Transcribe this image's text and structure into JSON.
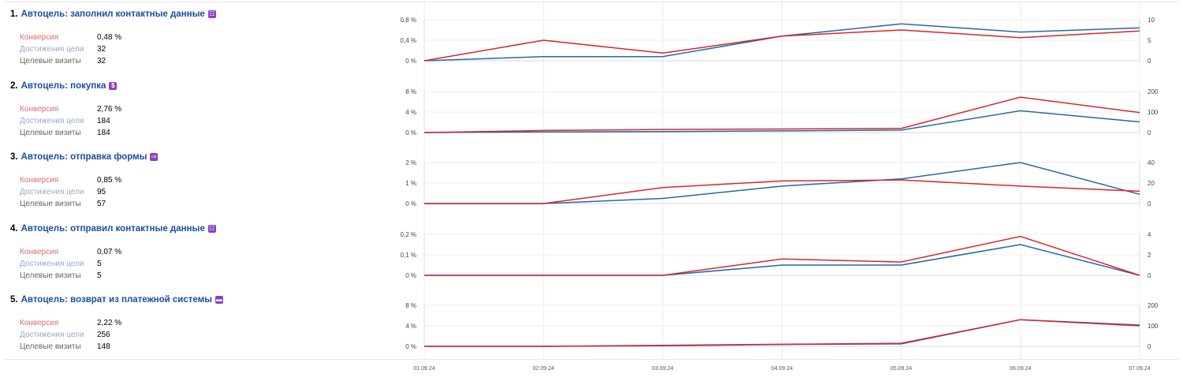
{
  "dates": [
    "01.09.24",
    "02.09.24",
    "03.09.24",
    "04.09.24",
    "05.09.24",
    "06.09.24",
    "07.09.24"
  ],
  "weekend_dates": [
    0,
    6
  ],
  "colors": {
    "conversion": "#d8262b",
    "visits": "#2469a5",
    "title": "#1a4ea3",
    "weekend": "#d8262b",
    "icon": "#8a3fc3"
  },
  "metric_labels": {
    "conversion": "Конверсия",
    "achievements": "Достижения цели",
    "visits": "Целевые визиты"
  },
  "goals": [
    {
      "num": "1.",
      "title": "Автоцель: заполнил контактные данные",
      "icon": "form-icon",
      "conversion": "0,48 %",
      "achievements": "32",
      "visits": "32",
      "chart_data": {
        "type": "line",
        "left_ticks": [
          "0 %",
          "0,4 %",
          "0,8 %"
        ],
        "right_ticks": [
          "0",
          "5",
          "10"
        ],
        "left_max": 0.8,
        "right_max": 10,
        "series": [
          {
            "values": [
              0,
              0.4,
              0.15,
              0.48,
              0.6,
              0.45,
              0.58
            ]
          },
          {
            "values": [
              0,
              1,
              1,
              6,
              9,
              7,
              8
            ]
          }
        ]
      }
    },
    {
      "num": "2.",
      "title": "Автоцель: покупка",
      "icon": "dollar-icon",
      "conversion": "2,76 %",
      "achievements": "184",
      "visits": "184",
      "chart_data": {
        "type": "line",
        "left_ticks": [
          "0 %",
          "4 %",
          "8 %"
        ],
        "right_ticks": [
          "0",
          "100",
          "200"
        ],
        "left_max": 8,
        "right_max": 200,
        "series": [
          {
            "values": [
              0,
              0.4,
              0.6,
              0.7,
              0.8,
              6.9,
              3.9
            ]
          },
          {
            "values": [
              0,
              3,
              5,
              8,
              12,
              106,
              52
            ]
          }
        ]
      }
    },
    {
      "num": "3.",
      "title": "Автоцель: отправка формы",
      "icon": "form-send-icon",
      "conversion": "0,85 %",
      "achievements": "95",
      "visits": "57",
      "chart_data": {
        "type": "line",
        "left_ticks": [
          "0 %",
          "1 %",
          "2 %"
        ],
        "right_ticks": [
          "0",
          "20",
          "40"
        ],
        "left_max": 2,
        "right_max": 40,
        "series": [
          {
            "values": [
              0,
              0,
              0.78,
              1.1,
              1.15,
              0.85,
              0.6
            ]
          },
          {
            "values": [
              0,
              0,
              5,
              17,
              24,
              40,
              9
            ]
          }
        ]
      }
    },
    {
      "num": "4.",
      "title": "Автоцель: отправил контактные данные",
      "icon": "contacts-icon",
      "conversion": "0,07 %",
      "achievements": "5",
      "visits": "5",
      "chart_data": {
        "type": "line",
        "left_ticks": [
          "0 %",
          "0,1 %",
          "0,2 %"
        ],
        "right_ticks": [
          "0",
          "2",
          "4"
        ],
        "left_max": 0.2,
        "right_max": 4,
        "series": [
          {
            "values": [
              0,
              0,
              0,
              0.08,
              0.065,
              0.19,
              0
            ]
          },
          {
            "values": [
              0,
              0,
              0,
              1,
              1,
              3,
              0
            ]
          }
        ]
      }
    },
    {
      "num": "5.",
      "title": "Автоцель: возврат из платежной системы",
      "icon": "card-icon",
      "conversion": "2,22 %",
      "achievements": "256",
      "visits": "148",
      "chart_data": {
        "type": "line",
        "left_ticks": [
          "0 %",
          "4 %",
          "8 %"
        ],
        "right_ticks": [
          "0",
          "100",
          "200"
        ],
        "left_max": 8,
        "right_max": 200,
        "series": [
          {
            "values": [
              0,
              0,
              0.2,
              0.4,
              0.6,
              5.2,
              4.0
            ]
          },
          {
            "values": [
              0,
              0,
              3,
              9,
              12,
              130,
              104
            ]
          }
        ]
      }
    }
  ]
}
